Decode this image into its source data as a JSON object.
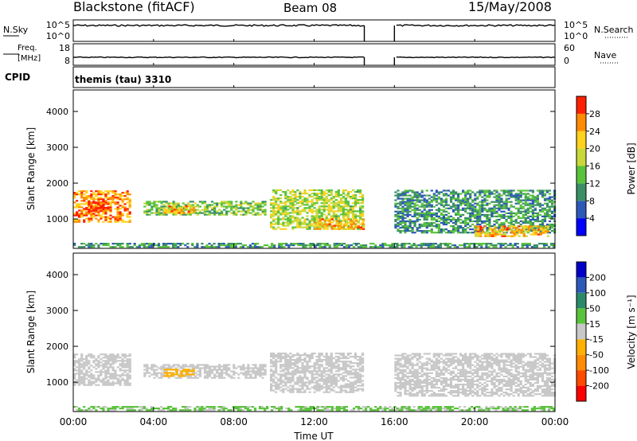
{
  "header": {
    "station": "Blackstone (fitACF)",
    "beam": "Beam 08",
    "date": "15/May/2008"
  },
  "noise_panel": {
    "left_label": "N.Sky",
    "left_ticks": [
      "10^5",
      "10^0"
    ],
    "right_ticks": [
      "10^5",
      "10^0"
    ],
    "right_label": "N.Search"
  },
  "freq_panel": {
    "left_label_line1": "Freq.",
    "left_label_line2": "[MHz]",
    "left_ticks": [
      "18",
      "8"
    ],
    "right_ticks": [
      "60",
      "0"
    ],
    "right_label": "Nave"
  },
  "cpid": {
    "label": "CPID",
    "value": "themis (tau) 3310"
  },
  "x_axis": {
    "ticks": [
      "00:00",
      "04:00",
      "08:00",
      "12:00",
      "16:00",
      "20:00",
      "00:00"
    ],
    "label": "Time UT"
  },
  "chart_data": [
    {
      "type": "heatmap",
      "title": "Power",
      "ylabel": "Slant Range [km]",
      "yticks": [
        "4000",
        "3000",
        "2000",
        "1000"
      ],
      "ylim": [
        180,
        4600
      ],
      "xlim_hours": [
        0,
        24
      ],
      "data_gap_hours": [
        14.5,
        16.0
      ],
      "colorbar": {
        "label": "Power [dB]",
        "ticks": [
          "28",
          "24",
          "20",
          "16",
          "12",
          "8",
          "4"
        ],
        "range": [
          0,
          30
        ]
      },
      "colors": [
        "#0000ff",
        "#2c58b8",
        "#3a8f66",
        "#5ac33c",
        "#c8d83a",
        "#ffd21c",
        "#ff8c00",
        "#ff2000"
      ],
      "echo_regions": [
        {
          "t": [
            0,
            2.8
          ],
          "r": [
            900,
            1800
          ],
          "value": 24
        },
        {
          "t": [
            0.6,
            1.6
          ],
          "r": [
            1200,
            1500
          ],
          "value": 28
        },
        {
          "t": [
            3.5,
            9.5
          ],
          "r": [
            1100,
            1500
          ],
          "value": 14
        },
        {
          "t": [
            4.5,
            6.0
          ],
          "r": [
            1150,
            1350
          ],
          "value": 22
        },
        {
          "t": [
            9.8,
            14.4
          ],
          "r": [
            700,
            1800
          ],
          "value": 16
        },
        {
          "t": [
            12.0,
            14.4
          ],
          "r": [
            700,
            1000
          ],
          "value": 22
        },
        {
          "t": [
            16.0,
            24.0
          ],
          "r": [
            600,
            1800
          ],
          "value": 10
        },
        {
          "t": [
            20.0,
            23.7
          ],
          "r": [
            500,
            800
          ],
          "value": 22
        },
        {
          "t": [
            0.0,
            24.0
          ],
          "r": [
            200,
            300
          ],
          "value": 10
        }
      ]
    },
    {
      "type": "heatmap",
      "title": "Velocity",
      "ylabel": "Slant Range [km]",
      "yticks": [
        "4000",
        "3000",
        "2000",
        "1000"
      ],
      "ylim": [
        180,
        4600
      ],
      "xlim_hours": [
        0,
        24
      ],
      "data_gap_hours": [
        14.5,
        16.0
      ],
      "colorbar": {
        "label": "Velocity [m s⁻¹]",
        "ticks": [
          "200",
          "100",
          "50",
          "15",
          "-15",
          "-50",
          "-100",
          "-200"
        ],
        "range": [
          -250,
          250
        ]
      },
      "colors": [
        "#ff0000",
        "#ff4a00",
        "#ff8c00",
        "#ffb000",
        "#c8c8c8",
        "#5ac33c",
        "#2a8a6a",
        "#2c58b8",
        "#0000c8"
      ],
      "echo_regions": [
        {
          "t": [
            0,
            2.8
          ],
          "r": [
            900,
            1800
          ],
          "value": 0
        },
        {
          "t": [
            3.5,
            9.5
          ],
          "r": [
            1100,
            1500
          ],
          "value": 0
        },
        {
          "t": [
            4.5,
            6.0
          ],
          "r": [
            1150,
            1350
          ],
          "value": -60
        },
        {
          "t": [
            9.8,
            14.4
          ],
          "r": [
            700,
            1800
          ],
          "value": 0
        },
        {
          "t": [
            16.0,
            24.0
          ],
          "r": [
            600,
            1800
          ],
          "value": 0
        },
        {
          "t": [
            0.0,
            24.0
          ],
          "r": [
            200,
            300
          ],
          "value": 30
        }
      ]
    }
  ]
}
